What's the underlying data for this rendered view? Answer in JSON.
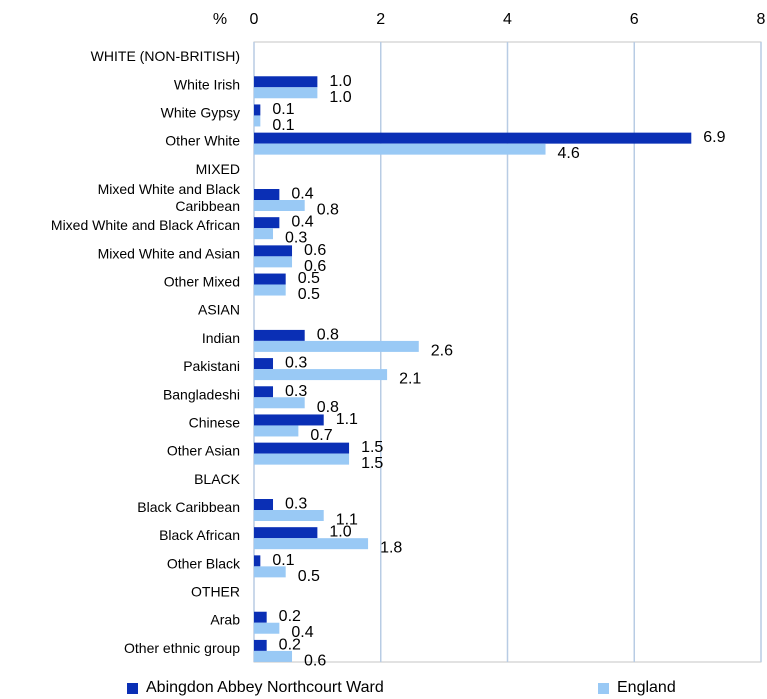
{
  "chart_data": {
    "type": "bar",
    "orientation": "horizontal",
    "unit_label": "%",
    "xlim": [
      0,
      8
    ],
    "xticks": [
      0,
      2,
      4,
      6,
      8
    ],
    "grid": true,
    "legend_position": "bottom",
    "categories": [
      "WHITE (NON-BRITISH)",
      "White Irish",
      "White Gypsy",
      "Other White",
      "MIXED",
      "Mixed White and Black Caribbean",
      "Mixed White and Black African",
      "Mixed White and Asian",
      "Other Mixed",
      "ASIAN",
      "Indian",
      "Pakistani",
      "Bangladeshi",
      "Chinese",
      "Other Asian",
      "BLACK",
      "Black Caribbean",
      "Black African",
      "Other Black",
      "OTHER",
      "Arab",
      "Other ethnic group"
    ],
    "category_lines": [
      [
        "WHITE (NON-BRITISH)"
      ],
      [
        "White Irish"
      ],
      [
        "White Gypsy"
      ],
      [
        "Other White"
      ],
      [
        "MIXED"
      ],
      [
        "Mixed White and Black",
        "Caribbean"
      ],
      [
        "Mixed White and Black African"
      ],
      [
        "Mixed White and Asian"
      ],
      [
        "Other Mixed"
      ],
      [
        "ASIAN"
      ],
      [
        "Indian"
      ],
      [
        "Pakistani"
      ],
      [
        "Bangladeshi"
      ],
      [
        "Chinese"
      ],
      [
        "Other Asian"
      ],
      [
        "BLACK"
      ],
      [
        "Black Caribbean"
      ],
      [
        "Black African"
      ],
      [
        "Other Black"
      ],
      [
        "OTHER"
      ],
      [
        "Arab"
      ],
      [
        "Other ethnic group"
      ]
    ],
    "series": [
      {
        "name": "Abingdon Abbey Northcourt Ward",
        "color": "#0a2fb5",
        "values": [
          null,
          1.0,
          0.1,
          6.9,
          null,
          0.4,
          0.4,
          0.6,
          0.5,
          null,
          0.8,
          0.3,
          0.3,
          1.1,
          1.5,
          null,
          0.3,
          1.0,
          0.1,
          null,
          0.2,
          0.2
        ],
        "labels": [
          "",
          "1.0",
          "0.1",
          "6.9",
          "",
          "0.4",
          "0.4",
          "0.6",
          "0.5",
          "",
          "0.8",
          "0.3",
          "0.3",
          "1.1",
          "1.5",
          "",
          "0.3",
          "1.0",
          "0.1",
          "",
          "0.2",
          "0.2"
        ]
      },
      {
        "name": "England",
        "color": "#99c9f5",
        "values": [
          null,
          1.0,
          0.1,
          4.6,
          null,
          0.8,
          0.3,
          0.6,
          0.5,
          null,
          2.6,
          2.1,
          0.8,
          0.7,
          1.5,
          null,
          1.1,
          1.8,
          0.5,
          null,
          0.4,
          0.6
        ],
        "labels": [
          "",
          "1.0",
          "0.1",
          "4.6",
          "",
          "0.8",
          "0.3",
          "0.6",
          "0.5",
          "",
          "2.6",
          "2.1",
          "0.8",
          "0.7",
          "1.5",
          "",
          "1.1",
          "1.8",
          "0.5",
          "",
          "0.4",
          "0.6"
        ]
      }
    ]
  }
}
